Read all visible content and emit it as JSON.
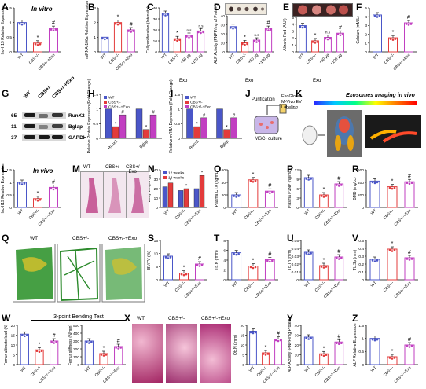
{
  "panel_letters": [
    "A",
    "B",
    "C",
    "D",
    "E",
    "F",
    "G",
    "H",
    "I",
    "J",
    "K",
    "L",
    "M",
    "N",
    "O",
    "P",
    "R",
    "Q",
    "S",
    "T",
    "U",
    "V",
    "W",
    "X",
    "Y",
    "Z"
  ],
  "groups": {
    "wt": "WT",
    "cbs": "CBS+/-",
    "exo": "CBS+/-+Exo",
    "cbs_exo_50": "CBS+/- +50 µg",
    "cbs_exo_100": "CBS+/- +100 µg",
    "exo_tag": "Exo"
  },
  "titles": {
    "in_vitro": "In vitro",
    "in_vivo": "In vivo",
    "exo_imaging": "Exosomes imaging in vivo",
    "bending_test": "3-point Bending Test"
  },
  "blot": {
    "columns": [
      "WT",
      "CBS+/-",
      "CBS+/-+Exo"
    ],
    "rows": [
      {
        "mw": "65",
        "protein": "RunX2"
      },
      {
        "mw": "11",
        "protein": "Bglap"
      },
      {
        "mw": "37",
        "protein": "GAPDH"
      }
    ]
  },
  "schematic": {
    "labels": [
      "Purification",
      "MSC- culture",
      "ExoGlowT",
      "M-Vivo EV",
      "Labeling"
    ]
  },
  "micrograph_labels": {
    "m": [
      "WT",
      "CBS+/-",
      "CBS+/-+Exo"
    ],
    "q": [
      "WT",
      "CBS+/-",
      "CBS+/-+Exo"
    ],
    "x": [
      "WT",
      "CBS+/-",
      "CBS+/-+Exo"
    ]
  },
  "colors": {
    "wt": "#4a56c8",
    "cbs": "#e33b3b",
    "exo": "#c13fc1",
    "white_bar": "#ffffff"
  },
  "chart_data": [
    {
      "id": "A",
      "type": "bar",
      "ylabel": "lnc-H19 Relative Expression",
      "categories": [
        "WT",
        "CBS+/-",
        "CBS+/-+Exo"
      ],
      "values": [
        1.0,
        0.3,
        0.8
      ],
      "ylim": [
        0,
        1.5
      ],
      "ticks": [
        "0",
        "0.5",
        "1",
        "1.5"
      ],
      "marks": [
        "",
        "*",
        "#"
      ]
    },
    {
      "id": "B",
      "type": "bar",
      "ylabel": "miRNA-106a Relative Expression",
      "categories": [
        "WT",
        "CBS+/-",
        "CBS+/-+Exo"
      ],
      "values": [
        1.0,
        2.0,
        1.5
      ],
      "ylim": [
        0,
        3
      ],
      "ticks": [
        "0",
        "1",
        "2",
        "3"
      ],
      "marks": [
        "",
        "*",
        "#"
      ]
    },
    {
      "id": "C",
      "type": "bar",
      "ylabel": "Cell proliferation (Intensity)",
      "categories": [
        "WT",
        "CBS+/-",
        "+50 µg",
        "+100 µg"
      ],
      "values": [
        35,
        12,
        15,
        19
      ],
      "ylim": [
        0,
        40
      ],
      "ticks": [
        "0",
        "10",
        "20",
        "30",
        "40"
      ],
      "marks": [
        "",
        "*",
        "n.s",
        "n.s"
      ]
    },
    {
      "id": "D",
      "type": "bar",
      "ylabel": "ALP Activity (PNPP/mg of Protein)",
      "categories": [
        "WT",
        "CBS+/-",
        "+50 µg",
        "+100 µg"
      ],
      "values": [
        28,
        10,
        13,
        26
      ],
      "ylim": [
        0,
        40
      ],
      "ticks": [
        "0",
        "10",
        "20",
        "30",
        "40"
      ],
      "marks": [
        "",
        "*",
        "n.s",
        "#"
      ]
    },
    {
      "id": "E",
      "type": "bar",
      "ylabel": "Alizarin Red (A.U.)",
      "categories": [
        "WT",
        "CBS+/-",
        "+50 µg",
        "+100 µg"
      ],
      "values": [
        3.8,
        1.6,
        2.1,
        2.7
      ],
      "ylim": [
        0,
        5
      ],
      "ticks": [
        "0",
        "1",
        "2",
        "3",
        "4",
        "5"
      ],
      "marks": [
        "",
        "*",
        "n.s",
        "#"
      ]
    },
    {
      "id": "F",
      "type": "bar",
      "ylabel": "Calcium (mM/L)",
      "categories": [
        "WT",
        "CBS+/-",
        "CBS+/-+Exo"
      ],
      "values": [
        4.2,
        1.6,
        3.3
      ],
      "ylim": [
        0,
        5
      ],
      "ticks": [
        "0",
        "1",
        "2",
        "3",
        "4",
        "5"
      ],
      "marks": [
        "",
        "*",
        "#"
      ]
    },
    {
      "id": "H",
      "type": "bar",
      "ylabel": "Relative Protein Expression (Fold Change)",
      "categories": [
        "Runx2",
        "Bglap"
      ],
      "series": [
        {
          "name": "WT",
          "values": [
            1.0,
            1.0
          ]
        },
        {
          "name": "CBS+/-",
          "values": [
            0.4,
            0.3
          ]
        },
        {
          "name": "CBS+/-+Exo",
          "values": [
            0.8,
            0.8
          ]
        }
      ],
      "ylim": [
        0,
        1.5
      ],
      "ticks": [
        "0",
        "0.5",
        "1",
        "1.5"
      ],
      "marks": [
        "",
        "*",
        "#"
      ]
    },
    {
      "id": "I",
      "type": "bar",
      "ylabel": "Relative mRNA Expression (Fold Change)",
      "categories": [
        "Runx2",
        "Bglap"
      ],
      "series": [
        {
          "name": "WT",
          "values": [
            1.0,
            1.0
          ]
        },
        {
          "name": "CBS+/-",
          "values": [
            0.4,
            0.3
          ]
        },
        {
          "name": "CBS+/-+Exo",
          "values": [
            0.7,
            0.7
          ]
        }
      ],
      "ylim": [
        0,
        1.5
      ],
      "ticks": [
        "0",
        "0.5",
        "1",
        "1.5"
      ],
      "marks": [
        "",
        "*",
        "#"
      ]
    },
    {
      "id": "L",
      "type": "bar",
      "ylabel": "lnc-H19 Relative Expression",
      "categories": [
        "WT",
        "CBS+/-",
        "CBS+/-+Exo"
      ],
      "values": [
        1.0,
        0.35,
        0.8
      ],
      "ylim": [
        0,
        1.5
      ],
      "ticks": [
        "0",
        "0.5",
        "1",
        "1.5"
      ],
      "marks": [
        "",
        "*",
        "#"
      ]
    },
    {
      "id": "N",
      "type": "bar",
      "ylabel": "Body weight (g)",
      "categories": [
        "WT",
        "CBS+/-",
        "CBS+/-+Exo"
      ],
      "series": [
        {
          "name": "12 weeks",
          "values": [
            22,
            18,
            20
          ]
        },
        {
          "name": "18 weeks",
          "values": [
            26,
            20,
            34
          ]
        }
      ],
      "ylim": [
        0,
        40
      ],
      "ticks": [
        "0",
        "10",
        "20",
        "30",
        "40"
      ],
      "marks": [
        "",
        "*",
        "#"
      ]
    },
    {
      "id": "O",
      "type": "bar",
      "ylabel": "Plasma CTX (ng/mL)",
      "categories": [
        "WT",
        "CBS+/-",
        "CBS+/-+Exo"
      ],
      "values": [
        20,
        44,
        26
      ],
      "ylim": [
        0,
        60
      ],
      "ticks": [
        "0",
        "20",
        "40",
        "60"
      ],
      "marks": [
        "",
        "*",
        "#"
      ]
    },
    {
      "id": "P",
      "type": "bar",
      "ylabel": "Plasma P1NP (ng/mL)",
      "categories": [
        "WT",
        "CBS+/-",
        "CBS+/-+Exo"
      ],
      "values": [
        9.5,
        4.0,
        7.5
      ],
      "ylim": [
        0,
        12
      ],
      "ticks": [
        "0",
        "3",
        "6",
        "9",
        "12"
      ],
      "marks": [
        "",
        "*",
        "#"
      ]
    },
    {
      "id": "R",
      "type": "bar",
      "ylabel": "BMD (mg/cc)",
      "categories": [
        "WT",
        "CBS+/-",
        "CBS+/-+Exo"
      ],
      "values": [
        420,
        330,
        410
      ],
      "ylim": [
        0,
        600
      ],
      "ticks": [
        "0",
        "200",
        "400",
        "600"
      ],
      "marks": [
        "",
        "*",
        "#"
      ]
    },
    {
      "id": "S",
      "type": "bar",
      "ylabel": "BV/TV (%)",
      "categories": [
        "WT",
        "CBS+/-",
        "CBS+/-+Exo"
      ],
      "values": [
        9,
        2.5,
        6
      ],
      "ylim": [
        0,
        15
      ],
      "ticks": [
        "0",
        "5",
        "10",
        "15"
      ],
      "marks": [
        "",
        "*",
        "#"
      ]
    },
    {
      "id": "T",
      "type": "bar",
      "ylabel": "Tb.N (/mm)",
      "categories": [
        "WT",
        "CBS+/-",
        "CBS+/-+Exo"
      ],
      "values": [
        5.5,
        2.8,
        4.1
      ],
      "ylim": [
        0,
        8
      ],
      "ticks": [
        "0",
        "2",
        "4",
        "6",
        "8"
      ],
      "marks": [
        "",
        "*",
        "#"
      ]
    },
    {
      "id": "U",
      "type": "bar",
      "ylabel": "Tb.Th (mm)",
      "categories": [
        "WT",
        "CBS+/-",
        "CBS+/-+Exo"
      ],
      "values": [
        0.035,
        0.018,
        0.029
      ],
      "ylim": [
        0,
        0.05
      ],
      "ticks": [
        "0",
        "0.01",
        "0.02",
        "0.03",
        "0.04",
        "0.05"
      ],
      "marks": [
        "",
        "*",
        "#"
      ]
    },
    {
      "id": "V",
      "type": "bar",
      "ylabel": "Tb.Sp (mm)",
      "categories": [
        "WT",
        "CBS+/-",
        "CBS+/-+Exo"
      ],
      "values": [
        0.26,
        0.39,
        0.28
      ],
      "ylim": [
        0,
        0.5
      ],
      "ticks": [
        "0",
        "0.1",
        "0.2",
        "0.3",
        "0.4",
        "0.5"
      ],
      "marks": [
        "",
        "*",
        "#"
      ]
    },
    {
      "id": "W1",
      "type": "bar",
      "ylabel": "Femur ultimate load (N)",
      "categories": [
        "WT",
        "CBS+/-",
        "CBS+/-+Exo"
      ],
      "values": [
        15.5,
        7.5,
        12.0
      ],
      "ylim": [
        0,
        20
      ],
      "ticks": [
        "0",
        "5",
        "10",
        "15",
        "20"
      ],
      "marks": [
        "",
        "*",
        "#"
      ]
    },
    {
      "id": "W2",
      "type": "bar",
      "ylabel": "Femur stiffness (N/mm)",
      "categories": [
        "WT",
        "CBS+/-",
        "CBS+/-+Exo"
      ],
      "values": [
        300,
        140,
        230
      ],
      "ylim": [
        0,
        500
      ],
      "ticks": [
        "0",
        "100",
        "200",
        "300",
        "400",
        "500"
      ],
      "marks": [
        "",
        "*",
        "#"
      ]
    },
    {
      "id": "X",
      "type": "bar",
      "ylabel": "Ob.N (/mm)",
      "categories": [
        "WT",
        "CBS+/-",
        "CBS+/-+Exo"
      ],
      "values": [
        17,
        6,
        13
      ],
      "ylim": [
        0,
        20
      ],
      "ticks": [
        "0",
        "5",
        "10",
        "15",
        "20"
      ],
      "marks": [
        "",
        "*",
        "#"
      ]
    },
    {
      "id": "Y",
      "type": "bar",
      "ylabel": "ALP Activity (PNPP/mg Protein)",
      "categories": [
        "WT",
        "CBS+/-",
        "CBS+/-+Exo"
      ],
      "values": [
        28,
        11,
        23
      ],
      "ylim": [
        0,
        40
      ],
      "ticks": [
        "0",
        "10",
        "20",
        "30",
        "40"
      ],
      "marks": [
        "",
        "*",
        "#"
      ]
    },
    {
      "id": "Z",
      "type": "bar",
      "ylabel": "ALP Relative Expression",
      "categories": [
        "WT",
        "CBS+/-",
        "CBS+/-+Exo"
      ],
      "values": [
        1.0,
        0.3,
        0.75
      ],
      "ylim": [
        0,
        1.5
      ],
      "ticks": [
        "0",
        "0.5",
        "1",
        "1.5"
      ],
      "marks": [
        "",
        "*",
        "#"
      ]
    }
  ]
}
